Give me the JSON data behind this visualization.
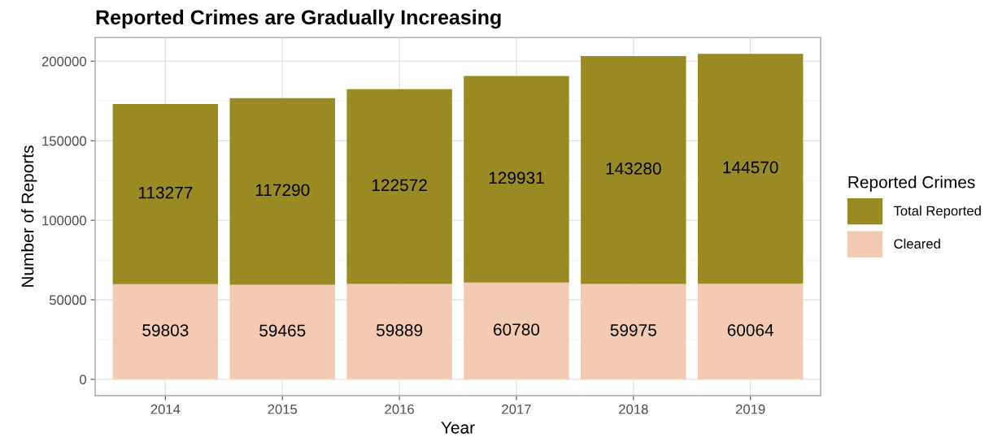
{
  "chart_data": {
    "type": "bar",
    "title": "Reported Crimes are Gradually Increasing",
    "xlabel": "Year",
    "ylabel": "Number of Reports",
    "legend_title": "Reported Crimes",
    "categories": [
      "2014",
      "2015",
      "2016",
      "2017",
      "2018",
      "2019"
    ],
    "series": [
      {
        "name": "Cleared",
        "color": "#f4cbb2",
        "values": [
          59803,
          59465,
          59889,
          60780,
          59975,
          60064
        ]
      },
      {
        "name": "Total Reported",
        "color": "#9a8a24",
        "values": [
          113277,
          117290,
          122572,
          129931,
          143280,
          144570
        ]
      }
    ],
    "stacked": true,
    "data_labels": true,
    "ylim": [
      -10232,
      214866
    ],
    "yticks": [
      0,
      50000,
      100000,
      150000,
      200000
    ],
    "grid": true,
    "legend": "right"
  }
}
